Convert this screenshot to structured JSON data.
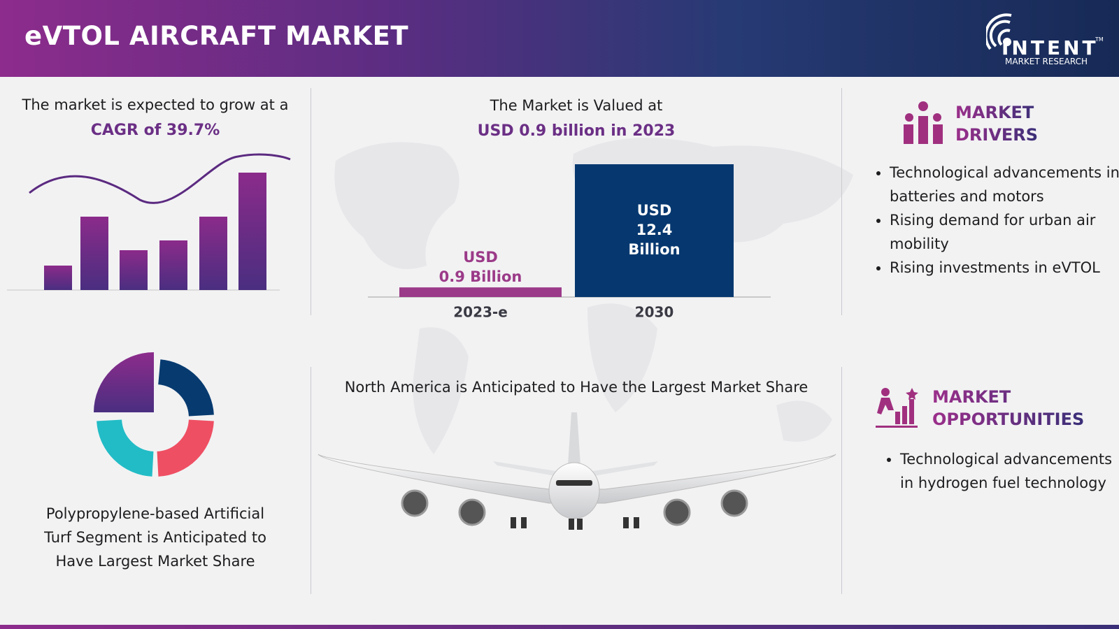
{
  "header": {
    "title": "eVTOL AIRCRAFT MARKET",
    "logo": {
      "name": "INTENT",
      "trademark": "TM",
      "subtitle": "MARKET RESEARCH"
    }
  },
  "growth": {
    "text": "The market is expected to grow at a",
    "highlight": "CAGR of 39.7%"
  },
  "valuation": {
    "text": "The Market is Valued at",
    "highlight": "USD 0.9 billion in 2023",
    "bars": [
      {
        "category": "2023-e",
        "value": 0.9,
        "label_lines": [
          "USD",
          "0.9 Billion"
        ],
        "color": "#9b3a88"
      },
      {
        "category": "2030",
        "value": 12.4,
        "label_lines": [
          "USD",
          "12.4",
          "Billion"
        ],
        "color": "#06386f"
      }
    ]
  },
  "segment": {
    "text_lines": [
      "Polypropylene-based Artificial",
      "Turf Segment is Anticipated to",
      "Have Largest Market Share"
    ]
  },
  "region": {
    "text": "North America is Anticipated to Have the Largest Market Share"
  },
  "drivers": {
    "title_lines": [
      "MARKET",
      "DRIVERS"
    ],
    "items": [
      "Technological advancements in batteries and motors",
      "Rising demand for urban air mobility",
      "Rising investments in eVTOL"
    ]
  },
  "opportunities": {
    "title_lines": [
      "MARKET",
      "OPPORTUNITIES"
    ],
    "items": [
      "Technological advancements in hydrogen fuel technology"
    ]
  }
}
